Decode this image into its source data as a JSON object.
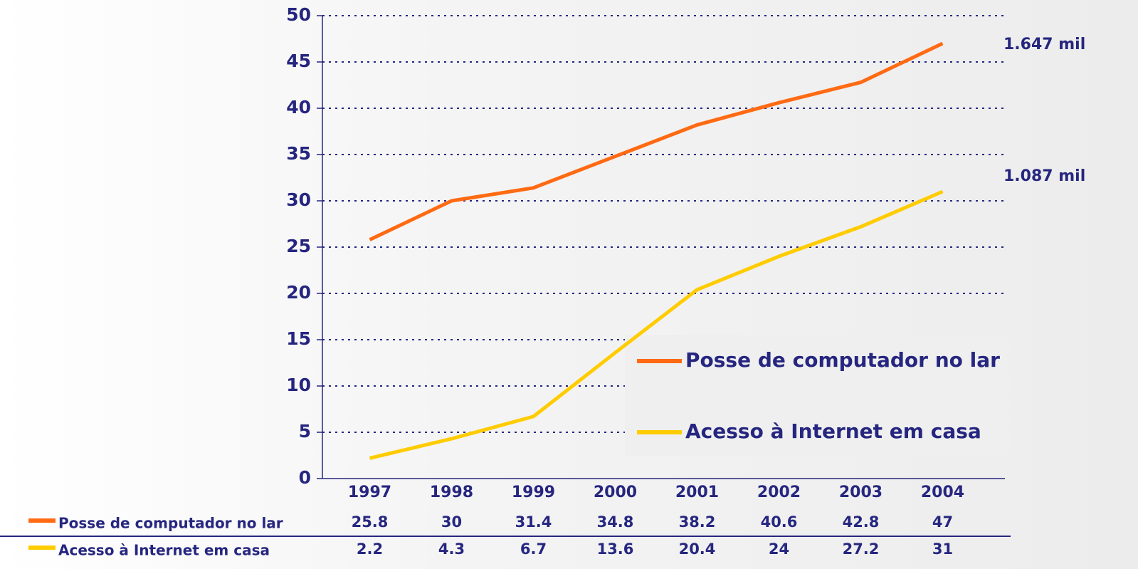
{
  "chart_data": {
    "type": "line",
    "categories": [
      "1997",
      "1998",
      "1999",
      "2000",
      "2001",
      "2002",
      "2003",
      "2004"
    ],
    "series": [
      {
        "name": "Posse de computador no lar",
        "color": "#ff6a13",
        "values": [
          25.8,
          30,
          31.4,
          34.8,
          38.2,
          40.6,
          42.8,
          47
        ]
      },
      {
        "name": "Acesso à Internet em casa",
        "color": "#ffcc00",
        "values": [
          2.2,
          4.3,
          6.7,
          13.6,
          20.4,
          24,
          27.2,
          31
        ]
      }
    ],
    "ylim": [
      0,
      50
    ],
    "yticks": [
      0,
      5,
      10,
      15,
      20,
      25,
      30,
      35,
      40,
      45,
      50
    ],
    "grid": true,
    "annotations": [
      "1.647 mil",
      "1.087 mil"
    ],
    "data_table": true
  }
}
